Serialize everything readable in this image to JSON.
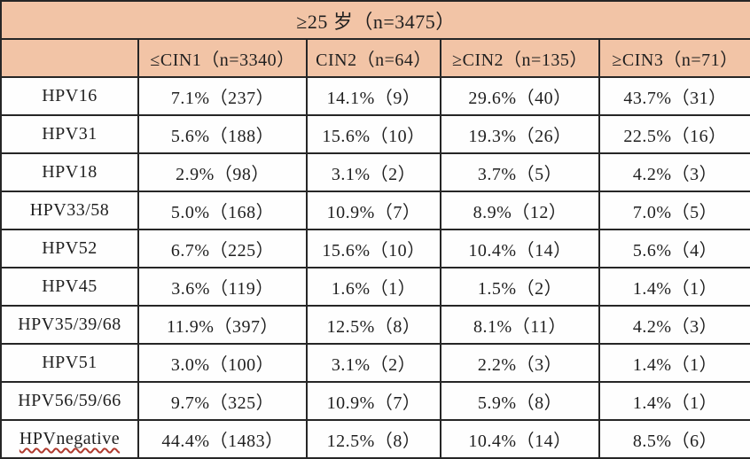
{
  "table": {
    "title": "≥25 岁（n=3475）",
    "columns": [
      "",
      "≤CIN1（n=3340）",
      "CIN2（n=64）",
      "≥CIN2（n=135）",
      "≥CIN3（n=71）"
    ],
    "rows": [
      {
        "label": "HPV16",
        "values": [
          "7.1%（237）",
          "14.1%（9）",
          "29.6%（40）",
          "43.7%（31）"
        ]
      },
      {
        "label": "HPV31",
        "values": [
          "5.6%（188）",
          "15.6%（10）",
          "19.3%（26）",
          "22.5%（16）"
        ]
      },
      {
        "label": "HPV18",
        "values": [
          "2.9%（98）",
          "3.1%（2）",
          "3.7%（5）",
          "4.2%（3）"
        ]
      },
      {
        "label": "HPV33/58",
        "values": [
          "5.0%（168）",
          "10.9%（7）",
          "8.9%（12）",
          "7.0%（5）"
        ]
      },
      {
        "label": "HPV52",
        "values": [
          "6.7%（225）",
          "15.6%（10）",
          "10.4%（14）",
          "5.6%（4）"
        ]
      },
      {
        "label": "HPV45",
        "values": [
          "3.6%（119）",
          "1.6%（1）",
          "1.5%（2）",
          "1.4%（1）"
        ]
      },
      {
        "label": "HPV35/39/68",
        "values": [
          "11.9%（397）",
          "12.5%（8）",
          "8.1%（11）",
          "4.2%（3）"
        ]
      },
      {
        "label": "HPV51",
        "values": [
          "3.0%（100）",
          "3.1%（2）",
          "2.2%（3）",
          "1.4%（1）"
        ]
      },
      {
        "label": "HPV56/59/66",
        "values": [
          "9.7%（325）",
          "10.9%（7）",
          "5.9%（8）",
          "1.4%（1）"
        ]
      },
      {
        "label": "HPVnegative",
        "values": [
          "44.4%（1483）",
          "12.5%（8）",
          "10.4%（14）",
          "8.5%（6）"
        ],
        "spellcheck_underline": true
      }
    ],
    "colors": {
      "header_bg": "#f2c4a6",
      "border": "#262626",
      "body_bg": "#fefefe",
      "text": "#1f1f1f",
      "squiggle": "#b03a2e"
    }
  }
}
